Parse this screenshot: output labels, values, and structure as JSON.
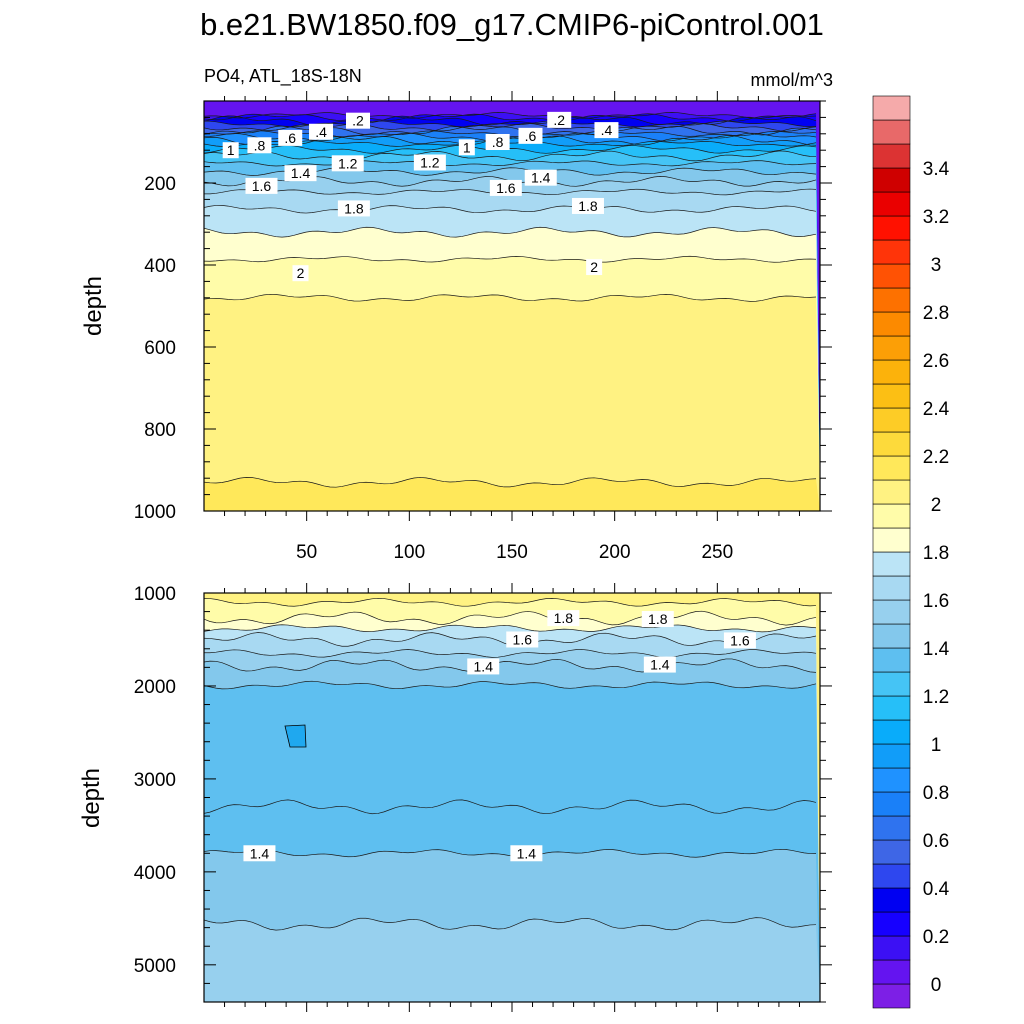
{
  "chart_data": {
    "type": "heatmap",
    "title": "b.e21.BW1850.f09_g17.CMIP6-piControl.001",
    "colorbar": {
      "levels": [
        0,
        0.1,
        0.2,
        0.3,
        0.4,
        0.5,
        0.6,
        0.7,
        0.8,
        0.9,
        1.0,
        1.1,
        1.2,
        1.3,
        1.4,
        1.5,
        1.6,
        1.7,
        1.8,
        1.9,
        2.0,
        2.1,
        2.2,
        2.3,
        2.4,
        2.5,
        2.6,
        2.7,
        2.8,
        2.9,
        3.0,
        3.1,
        3.2,
        3.3,
        3.4,
        3.5
      ],
      "colors": [
        "#7d1fe6",
        "#6414f0",
        "#3c10f4",
        "#1600ff",
        "#0000f2",
        "#2e47ef",
        "#3e66e6",
        "#2f73ef",
        "#1a80f8",
        "#1f92ff",
        "#119df9",
        "#09acfa",
        "#26bff8",
        "#45c4f5",
        "#5ebff0",
        "#83c8ec",
        "#97d0ee",
        "#a8d9f2",
        "#bbe4f6",
        "#ffffcf",
        "#fffca9",
        "#fff282",
        "#ffe85a",
        "#fdda3b",
        "#fdcc26",
        "#fcbf14",
        "#fcb20b",
        "#fc9f06",
        "#fc8a00",
        "#fd7100",
        "#ff5204",
        "#ff3409",
        "#ff1100",
        "#ea0000",
        "#cf0000",
        "#dc3333",
        "#e86969",
        "#f5aaaa"
      ],
      "tick_labels": [
        "0",
        "0.2",
        "0.4",
        "0.6",
        "0.8",
        "1",
        "1.2",
        "1.4",
        "1.6",
        "1.8",
        "2",
        "2.2",
        "2.4",
        "2.6",
        "2.8",
        "3",
        "3.2",
        "3.4"
      ]
    },
    "panels": [
      {
        "subtitle_left": "PO4, ATL_18S-18N",
        "subtitle_right": "mmol/m^3",
        "ylabel": "depth",
        "ylim": [
          0,
          1000
        ],
        "y_inverted": true,
        "xlim": [
          0,
          300
        ],
        "x_ticks": [
          "50",
          "100",
          "150",
          "200",
          "250"
        ],
        "y_ticks": [
          "200",
          "400",
          "600",
          "800",
          "1000"
        ],
        "contour_depths": [
          {
            "value": 0.1,
            "depth": 35
          },
          {
            "value": 0.2,
            "depth": 40
          },
          {
            "value": 0.3,
            "depth": 48
          },
          {
            "value": 0.4,
            "depth": 56
          },
          {
            "value": 0.5,
            "depth": 64
          },
          {
            "value": 0.6,
            "depth": 72
          },
          {
            "value": 0.7,
            "depth": 80
          },
          {
            "value": 0.8,
            "depth": 88
          },
          {
            "value": 0.9,
            "depth": 96
          },
          {
            "value": 1.0,
            "depth": 104
          },
          {
            "value": 1.1,
            "depth": 118
          },
          {
            "value": 1.2,
            "depth": 134
          },
          {
            "value": 1.3,
            "depth": 152
          },
          {
            "value": 1.4,
            "depth": 172
          },
          {
            "value": 1.5,
            "depth": 196
          },
          {
            "value": 1.6,
            "depth": 222
          },
          {
            "value": 1.7,
            "depth": 264
          },
          {
            "value": 1.8,
            "depth": 320
          },
          {
            "value": 1.9,
            "depth": 386
          },
          {
            "value": 2.0,
            "depth": 480
          },
          {
            "value": 2.1,
            "depth": 930
          }
        ],
        "contour_labels": [
          {
            "text": ".2",
            "x": 75,
            "y": 48
          },
          {
            "text": ".4",
            "x": 57,
            "y": 75
          },
          {
            "text": ".6",
            "x": 42,
            "y": 90
          },
          {
            "text": ".8",
            "x": 27,
            "y": 108
          },
          {
            "text": "1",
            "x": 13,
            "y": 120
          },
          {
            "text": "1.2",
            "x": 70,
            "y": 152
          },
          {
            "text": "1.4",
            "x": 47,
            "y": 176
          },
          {
            "text": "1.6",
            "x": 28,
            "y": 207
          },
          {
            "text": "1.8",
            "x": 73,
            "y": 262
          },
          {
            "text": "2",
            "x": 47,
            "y": 420
          },
          {
            "text": ".2",
            "x": 173,
            "y": 46
          },
          {
            "text": ".4",
            "x": 196,
            "y": 71
          },
          {
            "text": ".6",
            "x": 159,
            "y": 85
          },
          {
            "text": ".8",
            "x": 143,
            "y": 100
          },
          {
            "text": "1",
            "x": 128,
            "y": 113
          },
          {
            "text": "1.2",
            "x": 110,
            "y": 150
          },
          {
            "text": "1.4",
            "x": 164,
            "y": 187
          },
          {
            "text": "1.6",
            "x": 147,
            "y": 212
          },
          {
            "text": "1.8",
            "x": 187,
            "y": 256
          },
          {
            "text": "2",
            "x": 190,
            "y": 405
          }
        ]
      },
      {
        "subtitle_left": "",
        "subtitle_right": "",
        "ylabel": "depth",
        "ylim": [
          1000,
          5400
        ],
        "y_inverted": true,
        "xlim": [
          0,
          300
        ],
        "x_ticks": [],
        "y_ticks": [
          "1000",
          "2000",
          "3000",
          "4000",
          "5000"
        ],
        "contour_depths": [
          {
            "value": 2.0,
            "depth": 1100
          },
          {
            "value": 1.9,
            "depth": 1270
          },
          {
            "value": 1.8,
            "depth": 1380
          },
          {
            "value": 1.7,
            "depth": 1500
          },
          {
            "value": 1.6,
            "depth": 1650
          },
          {
            "value": 1.5,
            "depth": 1780
          },
          {
            "value": 1.4,
            "depth": 1990
          },
          {
            "value": 1.3,
            "depth": 3300
          },
          {
            "value": 1.4,
            "depth": 3800
          },
          {
            "value": 1.5,
            "depth": 4560
          }
        ],
        "contour_labels": [
          {
            "text": "1.8",
            "x": 175,
            "y": 1270
          },
          {
            "text": "1.8",
            "x": 221,
            "y": 1280
          },
          {
            "text": "1.6",
            "x": 155,
            "y": 1500
          },
          {
            "text": "1.6",
            "x": 261,
            "y": 1510
          },
          {
            "text": "1.4",
            "x": 136,
            "y": 1790
          },
          {
            "text": "1.4",
            "x": 222,
            "y": 1770
          },
          {
            "text": "1.4",
            "x": 27,
            "y": 3800
          },
          {
            "text": "1.4",
            "x": 157,
            "y": 3800
          }
        ]
      }
    ]
  }
}
